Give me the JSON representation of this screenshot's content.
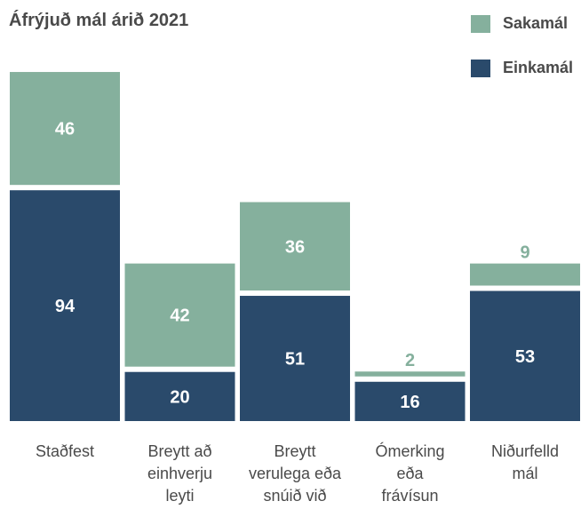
{
  "colors": {
    "sakamal": "#85b09d",
    "einkamal": "#2a4a6b",
    "label_outside": "#85b09d",
    "label_inside": "#ffffff",
    "text": "#4a4a4a"
  },
  "chart_data": {
    "type": "bar",
    "stacked": true,
    "title": "Áfrýjuð mál árið 2021",
    "categories": [
      [
        "Staðfest"
      ],
      [
        "Breytt að",
        "einhverju",
        "leyti"
      ],
      [
        "Breytt",
        "verulega eða",
        "snúið við"
      ],
      [
        "Ómerking",
        "eða",
        "frávísun"
      ],
      [
        "Niðurfelld",
        "mál"
      ]
    ],
    "series": [
      {
        "name": "Einkamál",
        "values": [
          94,
          20,
          51,
          16,
          53
        ]
      },
      {
        "name": "Sakamál",
        "values": [
          46,
          42,
          36,
          2,
          9
        ]
      }
    ],
    "legend_position": "top-right",
    "grid": false
  }
}
